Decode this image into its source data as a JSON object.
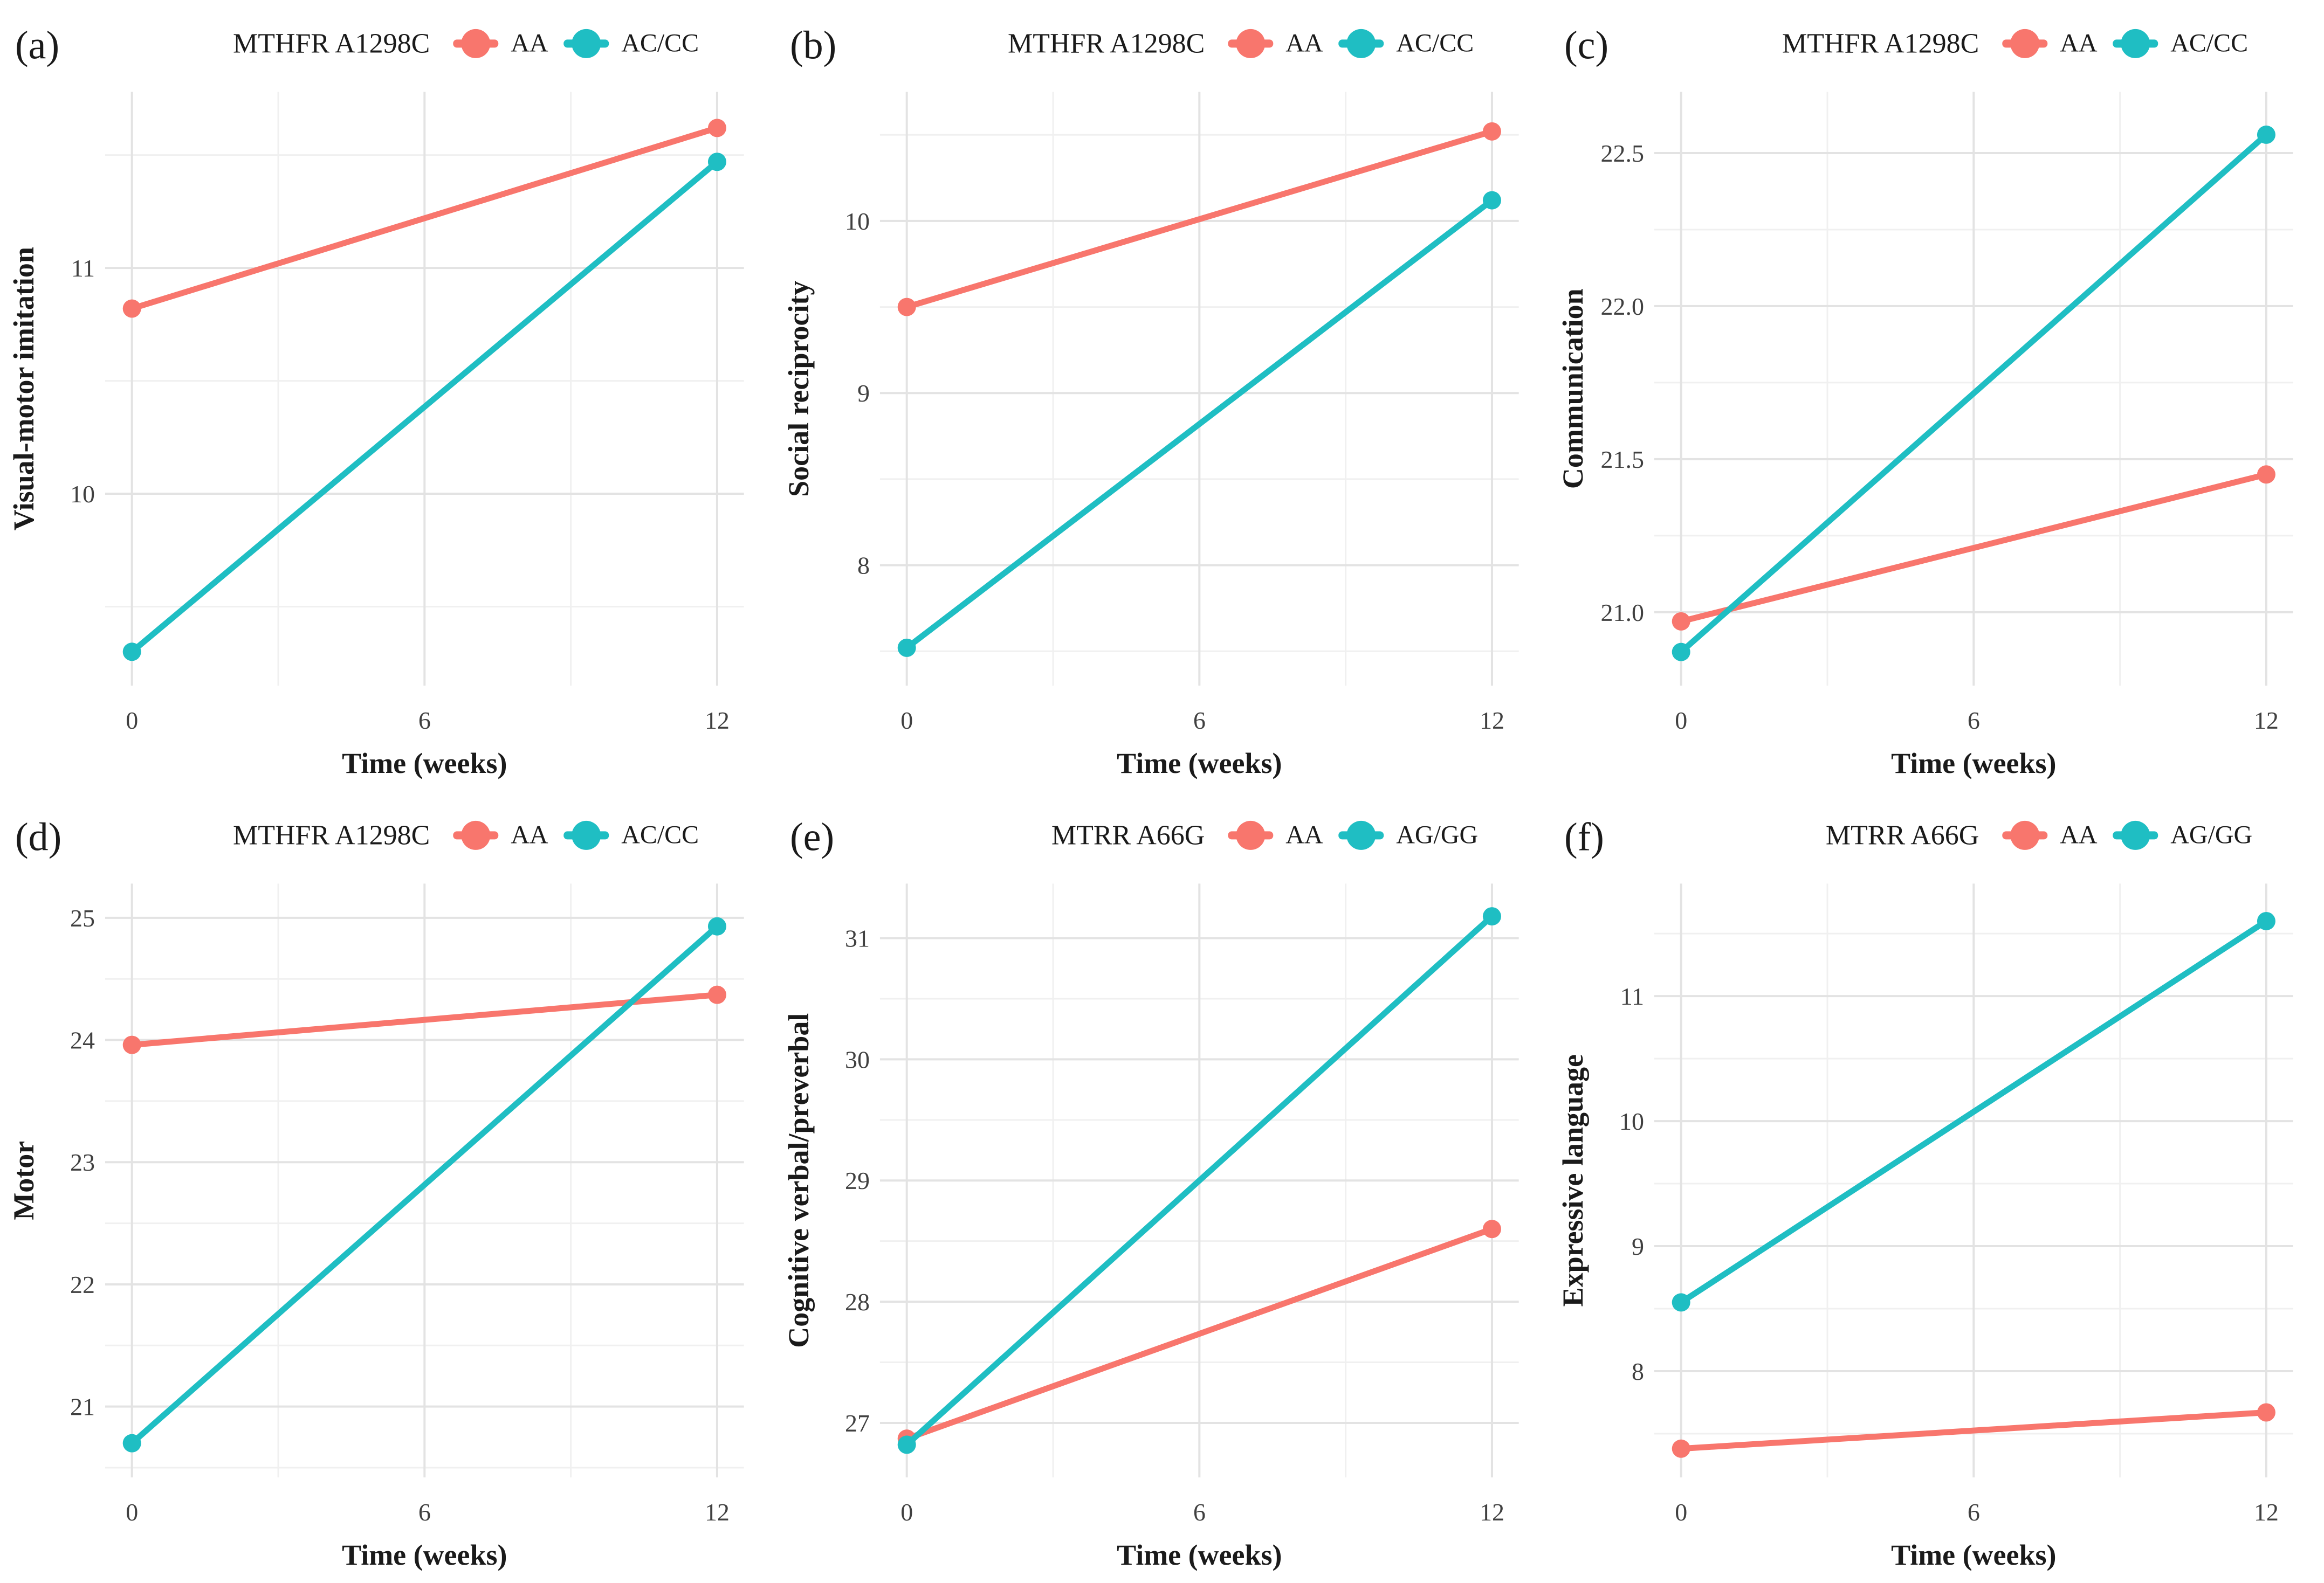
{
  "figure": {
    "background": "#ffffff",
    "colors": {
      "series_a": "#F8766D",
      "series_b": "#1FBEC3",
      "grid_major": "#E3E3E3",
      "grid_minor": "#F0F0F0",
      "tick_text": "#404040",
      "title_text": "#1a1a1a"
    },
    "x_axis": {
      "label": "Time (weeks)",
      "ticks": [
        0,
        6,
        12
      ],
      "minor_ticks": [
        3,
        9
      ],
      "domain": [
        -0.55,
        12.55
      ]
    }
  },
  "chart_data": [
    {
      "panel_letter": "(a)",
      "type": "line",
      "title": "MTHFR A1298C",
      "ylabel": "Visual-motor imitation",
      "xlabel": "Time (weeks)",
      "x": [
        0,
        12
      ],
      "xticks": [
        0,
        6,
        12
      ],
      "series": [
        {
          "name": "AA",
          "values": [
            10.82,
            11.62
          ]
        },
        {
          "name": "AC/CC",
          "values": [
            9.3,
            11.47
          ]
        }
      ],
      "yticks": [
        10,
        11
      ],
      "ytick_labels": [
        "10",
        "11"
      ],
      "minor_step": 0.5,
      "ylim": [
        9.15,
        11.78
      ]
    },
    {
      "panel_letter": "(b)",
      "type": "line",
      "title": "MTHFR A1298C",
      "ylabel": "Social reciprocity",
      "xlabel": "Time (weeks)",
      "x": [
        0,
        12
      ],
      "xticks": [
        0,
        6,
        12
      ],
      "series": [
        {
          "name": "AA",
          "values": [
            9.5,
            10.52
          ]
        },
        {
          "name": "AC/CC",
          "values": [
            7.52,
            10.12
          ]
        }
      ],
      "yticks": [
        8,
        9,
        10
      ],
      "ytick_labels": [
        "8",
        "9",
        "10"
      ],
      "minor_step": 0.5,
      "ylim": [
        7.3,
        10.75
      ]
    },
    {
      "panel_letter": "(c)",
      "type": "line",
      "title": "MTHFR A1298C",
      "ylabel": "Communication",
      "xlabel": "Time (weeks)",
      "x": [
        0,
        12
      ],
      "xticks": [
        0,
        6,
        12
      ],
      "series": [
        {
          "name": "AA",
          "values": [
            20.97,
            21.45
          ]
        },
        {
          "name": "AC/CC",
          "values": [
            20.87,
            22.56
          ]
        }
      ],
      "yticks": [
        21.0,
        21.5,
        22.0,
        22.5
      ],
      "ytick_labels": [
        "21.0",
        "21.5",
        "22.0",
        "22.5"
      ],
      "minor_step": 0.25,
      "ylim": [
        20.76,
        22.7
      ]
    },
    {
      "panel_letter": "(d)",
      "type": "line",
      "title": "MTHFR A1298C",
      "ylabel": "Motor",
      "xlabel": "Time (weeks)",
      "x": [
        0,
        12
      ],
      "xticks": [
        0,
        6,
        12
      ],
      "series": [
        {
          "name": "AA",
          "values": [
            23.96,
            24.37
          ]
        },
        {
          "name": "AC/CC",
          "values": [
            20.7,
            24.93
          ]
        }
      ],
      "yticks": [
        21,
        22,
        23,
        24,
        25
      ],
      "ytick_labels": [
        "21",
        "22",
        "23",
        "24",
        "25"
      ],
      "minor_step": 0.5,
      "ylim": [
        20.42,
        25.28
      ]
    },
    {
      "panel_letter": "(e)",
      "type": "line",
      "title": "MTRR A66G",
      "ylabel": "Cognitive verbal/preverbal",
      "xlabel": "Time (weeks)",
      "x": [
        0,
        12
      ],
      "xticks": [
        0,
        6,
        12
      ],
      "series": [
        {
          "name": "AA",
          "values": [
            26.87,
            28.6
          ]
        },
        {
          "name": "AG/GG",
          "values": [
            26.82,
            31.18
          ]
        }
      ],
      "yticks": [
        27,
        28,
        29,
        30,
        31
      ],
      "ytick_labels": [
        "27",
        "28",
        "29",
        "30",
        "31"
      ],
      "minor_step": 0.5,
      "ylim": [
        26.55,
        31.45
      ]
    },
    {
      "panel_letter": "(f)",
      "type": "line",
      "title": "MTRR A66G",
      "ylabel": "Expressive language",
      "xlabel": "Time (weeks)",
      "x": [
        0,
        12
      ],
      "xticks": [
        0,
        6,
        12
      ],
      "series": [
        {
          "name": "AA",
          "values": [
            7.38,
            7.67
          ]
        },
        {
          "name": "AG/GG",
          "values": [
            8.55,
            11.6
          ]
        }
      ],
      "yticks": [
        8,
        9,
        10,
        11
      ],
      "ytick_labels": [
        "8",
        "9",
        "10",
        "11"
      ],
      "minor_step": 0.5,
      "ylim": [
        7.15,
        11.9
      ]
    }
  ]
}
